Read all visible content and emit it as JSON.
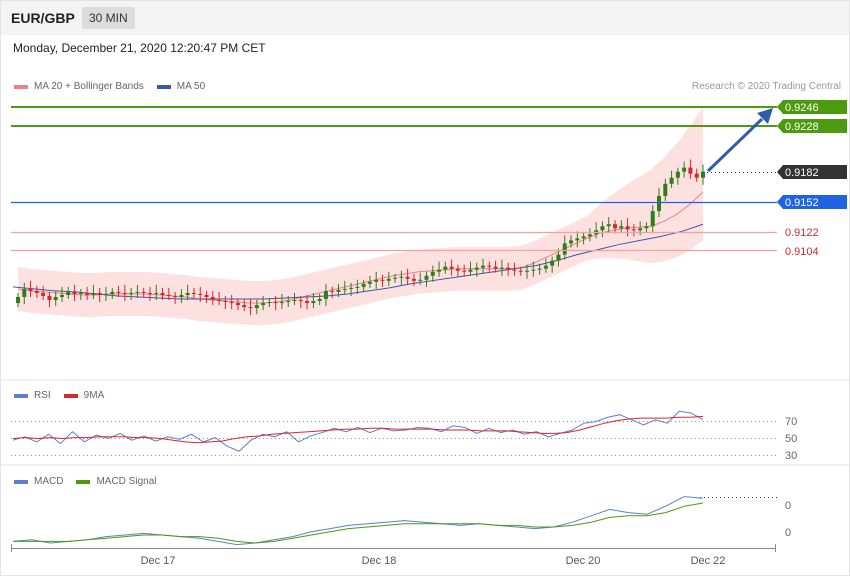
{
  "header": {
    "pair": "EUR/GBP",
    "timeframe": "30 MIN",
    "timestamp": "Monday, December 21, 2020 12:20:47 PM CET"
  },
  "credit": "Research © 2020 Trading Central",
  "colors": {
    "up": "#2f7d1b",
    "down": "#d8262b",
    "band": "#fcd9d9",
    "ma20": "#f08080",
    "ma50": "#3a59a6",
    "green": "#4c9a0d",
    "blue": "#1e63e0",
    "red": "#d82b2b",
    "arrow": "#2f5ea8"
  },
  "chart_data": [
    {
      "type": "line",
      "title": "EUR/GBP 30 MIN",
      "legend": [
        "MA 20 + Bollinger Bands",
        "MA 50"
      ],
      "x_ticks": [
        "Dec 17",
        "Dec 18",
        "Dec 20",
        "Dec 22"
      ],
      "y_range": [
        0.9,
        0.926
      ],
      "levels": [
        {
          "value": "0.9246",
          "kind": "resistance-target"
        },
        {
          "value": "0.9228",
          "kind": "resistance"
        },
        {
          "value": "0.9182",
          "kind": "last-price"
        },
        {
          "value": "0.9152",
          "kind": "pivot"
        },
        {
          "value": "0.9122",
          "kind": "support"
        },
        {
          "value": "0.9104",
          "kind": "support"
        }
      ],
      "close": [
        0.9058,
        0.9066,
        0.9064,
        0.9062,
        0.9059,
        0.9055,
        0.9058,
        0.906,
        0.9063,
        0.9061,
        0.9062,
        0.906,
        0.9062,
        0.906,
        0.9061,
        0.9063,
        0.9062,
        0.9061,
        0.9062,
        0.9063,
        0.9062,
        0.9061,
        0.9062,
        0.906,
        0.9059,
        0.9058,
        0.906,
        0.9062,
        0.9061,
        0.906,
        0.9058,
        0.9055,
        0.9054,
        0.9053,
        0.9052,
        0.905,
        0.9048,
        0.9047,
        0.905,
        0.9052,
        0.9053,
        0.9052,
        0.9053,
        0.9054,
        0.9055,
        0.9054,
        0.9052,
        0.9054,
        0.9056,
        0.9064,
        0.9063,
        0.9065,
        0.9066,
        0.9067,
        0.9068,
        0.9071,
        0.9073,
        0.9075,
        0.9074,
        0.9076,
        0.9077,
        0.9078,
        0.9076,
        0.9074,
        0.9075,
        0.9079,
        0.9083,
        0.9085,
        0.9088,
        0.9086,
        0.9084,
        0.9083,
        0.9085,
        0.9087,
        0.9089,
        0.9088,
        0.9086,
        0.9087,
        0.9085,
        0.9084,
        0.9083,
        0.9084,
        0.9085,
        0.9086,
        0.9089,
        0.9094,
        0.91,
        0.9111,
        0.9114,
        0.9116,
        0.9118,
        0.912,
        0.9124,
        0.9128,
        0.913,
        0.9126,
        0.9128,
        0.9125,
        0.9124,
        0.9126,
        0.9128,
        0.9143,
        0.9158,
        0.917,
        0.9176,
        0.9182,
        0.9186,
        0.918,
        0.9176,
        0.9182
      ],
      "ma20": [
        0.9066,
        0.9064,
        0.9063,
        0.9062,
        0.9061,
        0.906,
        0.906,
        0.9061,
        0.9061,
        0.9061,
        0.9061,
        0.906,
        0.9059,
        0.9058,
        0.9056,
        0.9055,
        0.9054,
        0.9053,
        0.9052,
        0.9052,
        0.9053,
        0.9055,
        0.9058,
        0.9061,
        0.9064,
        0.9067,
        0.907,
        0.9073,
        0.9076,
        0.9079,
        0.9081,
        0.9083,
        0.9084,
        0.9085,
        0.9086,
        0.9086,
        0.9086,
        0.9086,
        0.9086,
        0.9087,
        0.9092,
        0.9098,
        0.9104,
        0.911,
        0.9116,
        0.9121,
        0.9124,
        0.9126,
        0.9127,
        0.9128,
        0.9133,
        0.914,
        0.915,
        0.9162
      ],
      "ma50": [
        0.9068,
        0.9066,
        0.9064,
        0.9063,
        0.9061,
        0.9059,
        0.9058,
        0.9057,
        0.9056,
        0.9056,
        0.9056,
        0.9056,
        0.9056,
        0.9057,
        0.9058,
        0.9059,
        0.9061,
        0.9064,
        0.9067,
        0.9071,
        0.9074,
        0.9077,
        0.908,
        0.9083,
        0.9086,
        0.9089,
        0.9094,
        0.91,
        0.9105,
        0.911,
        0.9114,
        0.9118,
        0.9123,
        0.913
      ]
    },
    {
      "type": "line",
      "title": "RSI",
      "legend": [
        "RSI",
        "9MA"
      ],
      "levels": [
        "70",
        "50",
        "30"
      ],
      "y_range": [
        20,
        85
      ],
      "rsi": [
        48,
        52,
        46,
        55,
        44,
        58,
        46,
        54,
        50,
        56,
        48,
        53,
        47,
        52,
        49,
        55,
        46,
        51,
        41,
        35,
        48,
        55,
        52,
        58,
        46,
        53,
        57,
        62,
        58,
        63,
        57,
        62,
        59,
        60,
        63,
        62,
        58,
        65,
        63,
        56,
        62,
        57,
        60,
        55,
        58,
        52,
        56,
        60,
        68,
        70,
        75,
        78,
        72,
        66,
        72,
        68,
        82,
        80,
        72
      ],
      "rsi_ma": [
        50,
        51,
        50,
        51,
        50,
        51,
        51,
        52,
        52,
        52,
        51,
        51,
        50,
        48,
        46,
        45,
        46,
        47,
        50,
        52,
        53,
        55,
        56,
        57,
        58,
        59,
        60,
        61,
        61,
        62,
        62,
        61,
        61,
        61,
        61,
        60,
        60,
        60,
        59,
        59,
        59,
        58,
        57,
        56,
        56,
        57,
        60,
        64,
        68,
        71,
        73,
        74,
        74,
        74,
        75,
        75,
        76
      ]
    },
    {
      "type": "line",
      "title": "MACD",
      "legend": [
        "MACD",
        "MACD Signal"
      ],
      "levels": [
        "0",
        "0"
      ],
      "y_range": [
        -0.001,
        0.003
      ],
      "macd": [
        0.0,
        0.0001,
        -0.0001,
        0.0,
        0.0001,
        0.0003,
        0.0004,
        0.0005,
        0.0004,
        0.0003,
        0.0002,
        0.0,
        -0.0002,
        -0.0001,
        0.0001,
        0.0003,
        0.0006,
        0.0008,
        0.001,
        0.0011,
        0.0012,
        0.0013,
        0.0012,
        0.0011,
        0.001,
        0.0011,
        0.001,
        0.0009,
        0.0008,
        0.0009,
        0.0012,
        0.0016,
        0.002,
        0.0018,
        0.0017,
        0.0022,
        0.0028,
        0.0027
      ],
      "signal": [
        0.0,
        0.0,
        0.0,
        0.0,
        0.0001,
        0.0002,
        0.0003,
        0.0004,
        0.0004,
        0.0003,
        0.0003,
        0.0002,
        0.0,
        -0.0001,
        0.0,
        0.0002,
        0.0004,
        0.0006,
        0.0008,
        0.0009,
        0.001,
        0.0011,
        0.0011,
        0.0011,
        0.0011,
        0.0011,
        0.001,
        0.001,
        0.0009,
        0.0009,
        0.001,
        0.0012,
        0.0015,
        0.0016,
        0.0016,
        0.0018,
        0.0022,
        0.0024
      ]
    }
  ]
}
